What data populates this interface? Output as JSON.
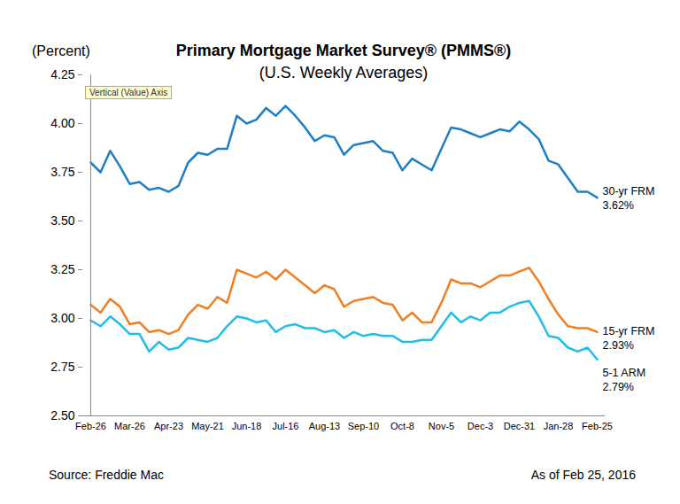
{
  "chart_data": {
    "type": "line",
    "title": "Primary Mortgage Market Survey® (PMMS®)",
    "subtitle": "(U.S. Weekly Averages)",
    "y_label": "(Percent)",
    "source": "Source: Freddie Mac",
    "date_note": "As of Feb 25, 2016",
    "annotations": [
      "Vertical (Value) Axis"
    ],
    "grid": false,
    "categories": [
      "Feb-26",
      null,
      null,
      null,
      "Mar-26",
      null,
      null,
      null,
      "Apr-23",
      null,
      null,
      null,
      "May-21",
      null,
      null,
      null,
      "Jun-18",
      null,
      null,
      null,
      "Jul-16",
      null,
      null,
      null,
      "Aug-13",
      null,
      null,
      null,
      "Sep-10",
      null,
      null,
      null,
      "Oct-8",
      null,
      null,
      null,
      "Nov-5",
      null,
      null,
      null,
      "Dec-3",
      null,
      null,
      null,
      "Dec-31",
      null,
      null,
      null,
      "Jan-28",
      null,
      null,
      null,
      "Feb-25"
    ],
    "ylim": [
      2.5,
      4.25
    ],
    "yticks": [
      {
        "value": 2.5,
        "label": "2.50"
      },
      2.75,
      {
        "value": 3,
        "label": "3.00"
      },
      3.25,
      {
        "value": 3.5,
        "label": "3.50"
      },
      3.75,
      {
        "value": 4,
        "label": "4.00"
      },
      4.25
    ],
    "series": [
      {
        "name": "30-yr FRM",
        "color": "#1f7fc4",
        "values": [
          3.8,
          3.75,
          3.86,
          3.78,
          3.69,
          3.7,
          3.66,
          3.67,
          3.65,
          3.68,
          3.8,
          3.85,
          3.84,
          3.87,
          3.87,
          4.04,
          4.0,
          4.02,
          4.08,
          4.04,
          4.09,
          4.04,
          3.98,
          3.91,
          3.94,
          3.93,
          3.84,
          3.89,
          3.9,
          3.91,
          3.86,
          3.85,
          3.76,
          3.82,
          3.79,
          3.76,
          3.87,
          3.98,
          3.97,
          3.95,
          3.93,
          3.95,
          3.97,
          3.96,
          4.01,
          3.97,
          3.92,
          3.81,
          3.79,
          3.72,
          3.65,
          3.65,
          3.62
        ],
        "value_labels": [
          null,
          null,
          null,
          null,
          null,
          null,
          null,
          null,
          null,
          null,
          null,
          null,
          null,
          null,
          null,
          null,
          null,
          null,
          null,
          null,
          null,
          null,
          null,
          null,
          null,
          null,
          null,
          null,
          null,
          null,
          null,
          null,
          null,
          null,
          null,
          null,
          null,
          null,
          null,
          null,
          null,
          null,
          null,
          null,
          null,
          null,
          null,
          null,
          null,
          null,
          null,
          null,
          "3.62%"
        ]
      },
      {
        "name": "15-yr FRM",
        "color": "#f07f22",
        "values": [
          3.07,
          3.03,
          3.1,
          3.06,
          2.97,
          2.98,
          2.93,
          2.94,
          2.92,
          2.94,
          3.02,
          3.07,
          3.05,
          3.11,
          3.08,
          3.25,
          3.23,
          3.21,
          3.24,
          3.2,
          3.25,
          3.21,
          3.17,
          3.13,
          3.17,
          3.15,
          3.06,
          3.09,
          3.1,
          3.11,
          3.08,
          3.07,
          2.99,
          3.03,
          2.98,
          2.98,
          3.08,
          3.2,
          3.18,
          3.18,
          3.16,
          3.19,
          3.22,
          3.22,
          3.24,
          3.26,
          3.19,
          3.1,
          3.02,
          2.96,
          2.95,
          2.95,
          2.93
        ],
        "value_labels": [
          null,
          null,
          null,
          null,
          null,
          null,
          null,
          null,
          null,
          null,
          null,
          null,
          null,
          null,
          null,
          null,
          null,
          null,
          null,
          null,
          null,
          null,
          null,
          null,
          null,
          null,
          null,
          null,
          null,
          null,
          null,
          null,
          null,
          null,
          null,
          null,
          null,
          null,
          null,
          null,
          null,
          null,
          null,
          null,
          null,
          null,
          null,
          null,
          null,
          null,
          null,
          null,
          "2.93%"
        ]
      },
      {
        "name": "5-1 ARM",
        "color": "#21bde8",
        "values": [
          2.99,
          2.96,
          3.01,
          2.97,
          2.92,
          2.92,
          2.83,
          2.88,
          2.84,
          2.85,
          2.9,
          2.89,
          2.88,
          2.9,
          2.96,
          3.01,
          3.0,
          2.98,
          2.99,
          2.93,
          2.96,
          2.97,
          2.95,
          2.95,
          2.93,
          2.94,
          2.9,
          2.93,
          2.91,
          2.92,
          2.91,
          2.91,
          2.88,
          2.88,
          2.89,
          2.89,
          2.96,
          3.03,
          2.98,
          3.01,
          2.99,
          3.03,
          3.03,
          3.06,
          3.08,
          3.09,
          3.01,
          2.91,
          2.9,
          2.85,
          2.83,
          2.85,
          2.79
        ],
        "value_labels": [
          null,
          null,
          null,
          null,
          null,
          null,
          null,
          null,
          null,
          null,
          null,
          null,
          null,
          null,
          null,
          null,
          null,
          null,
          null,
          null,
          null,
          null,
          null,
          null,
          null,
          null,
          null,
          null,
          null,
          null,
          null,
          null,
          null,
          null,
          null,
          null,
          null,
          null,
          null,
          null,
          null,
          null,
          null,
          null,
          null,
          null,
          null,
          null,
          null,
          null,
          null,
          null,
          "2.79%"
        ]
      }
    ]
  }
}
